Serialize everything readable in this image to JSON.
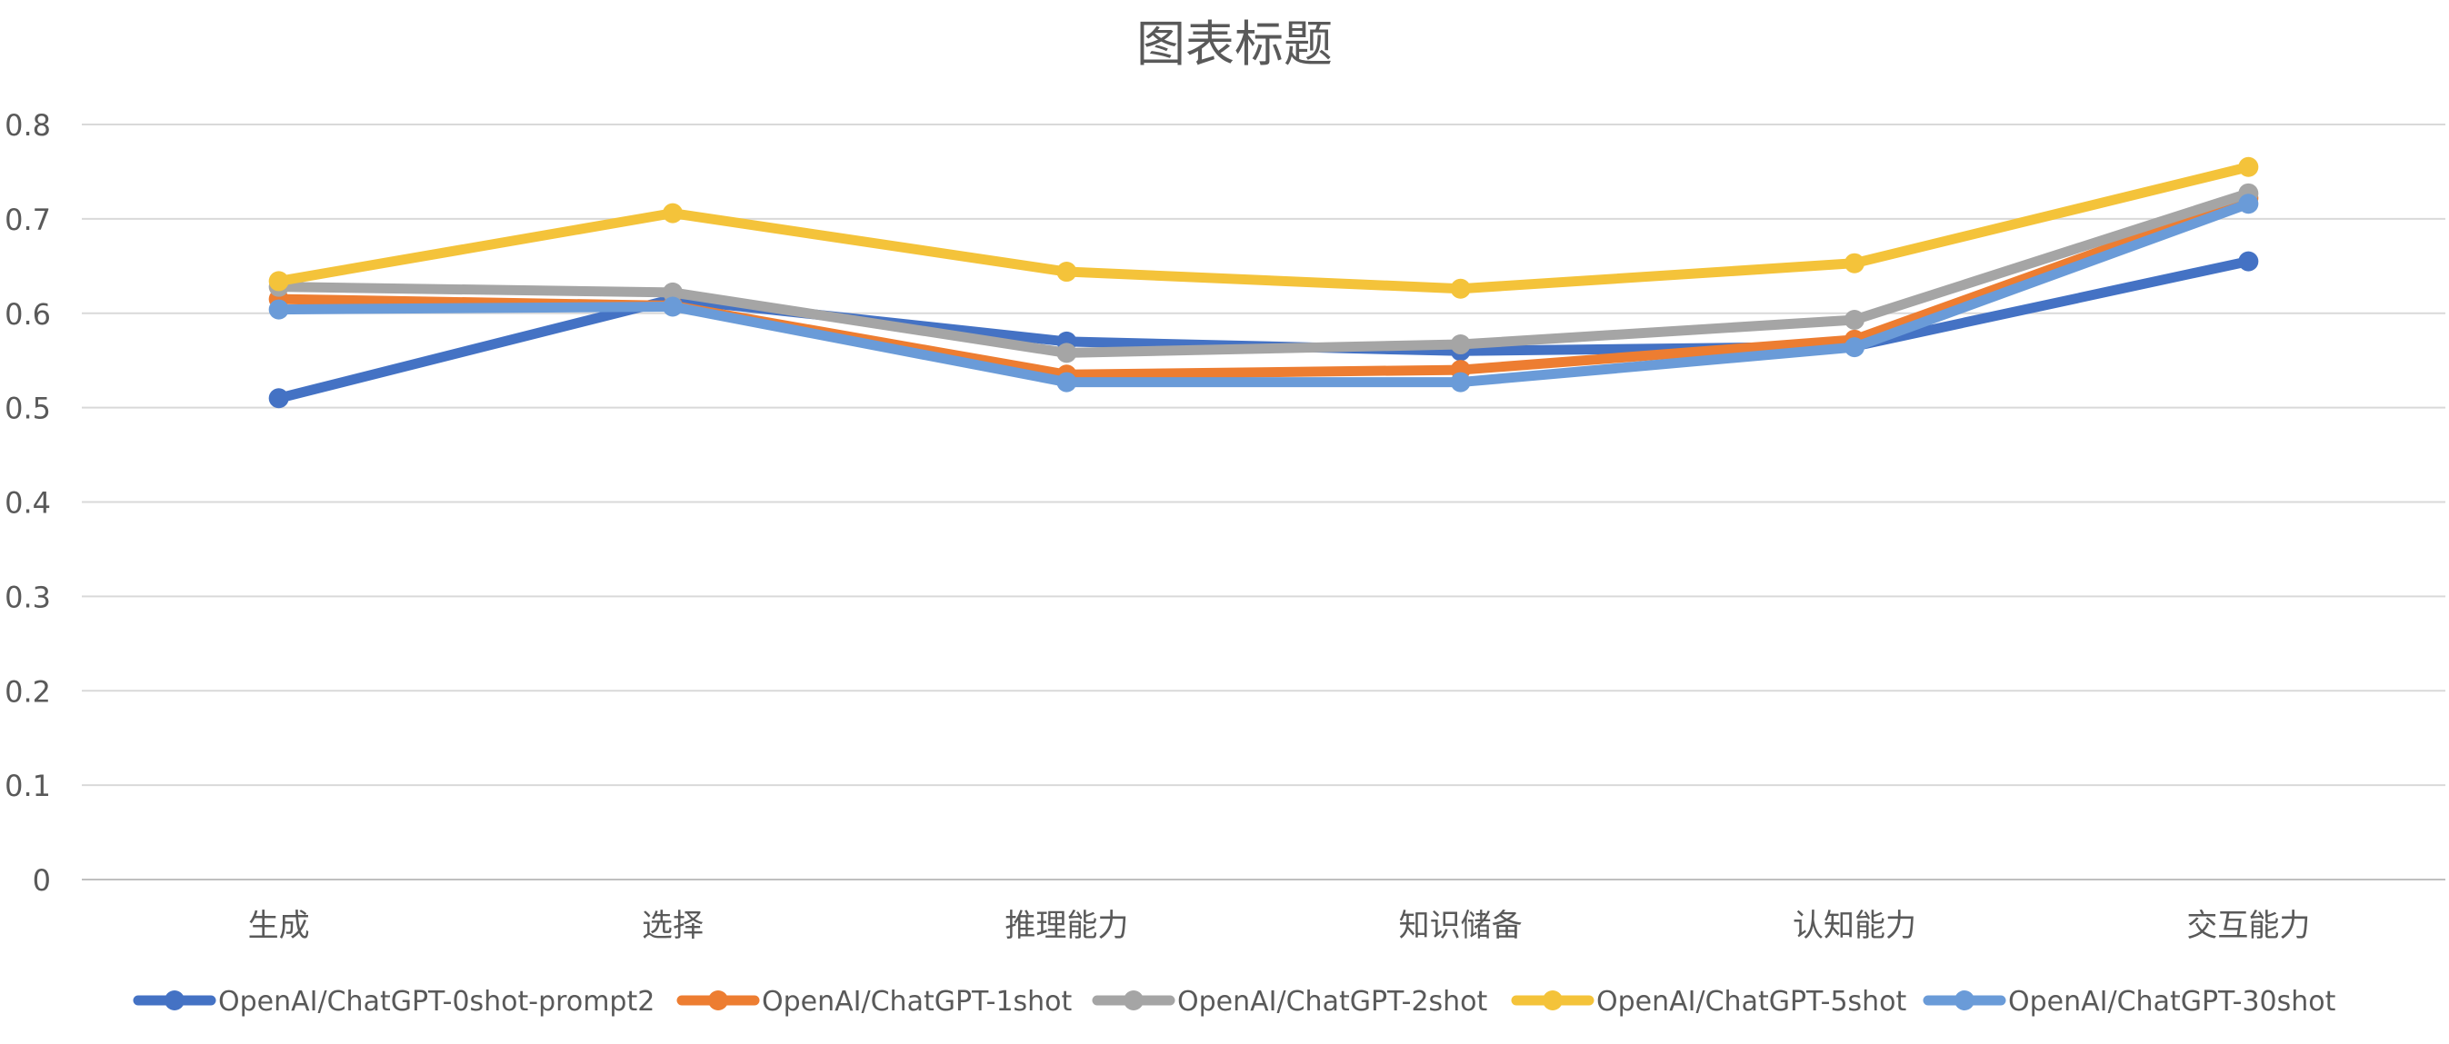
{
  "chart_data": {
    "type": "line",
    "title": "图表标题",
    "xlabel": "",
    "ylabel": "",
    "categories": [
      "生成",
      "选择",
      "推理能力",
      "知识储备",
      "认知能力",
      "交互能力"
    ],
    "ylim": [
      0,
      0.8
    ],
    "yticks": [
      0,
      0.1,
      0.2,
      0.3,
      0.4,
      0.5,
      0.6,
      0.7,
      0.8
    ],
    "ytick_labels": [
      "0",
      "0.1",
      "0.2",
      "0.3",
      "0.4",
      "0.5",
      "0.6",
      "0.7",
      "0.8"
    ],
    "grid": true,
    "legend_position": "bottom",
    "series": [
      {
        "name": "OpenAI/ChatGPT-0shot-prompt2",
        "color": "#4472C4",
        "values": [
          0.51,
          0.615,
          0.57,
          0.56,
          0.565,
          0.655
        ]
      },
      {
        "name": "OpenAI/ChatGPT-1shot",
        "color": "#ED7D31",
        "values": [
          0.615,
          0.608,
          0.535,
          0.54,
          0.572,
          0.722
        ]
      },
      {
        "name": "OpenAI/ChatGPT-2shot",
        "color": "#A5A5A5",
        "values": [
          0.628,
          0.622,
          0.558,
          0.567,
          0.593,
          0.727
        ]
      },
      {
        "name": "OpenAI/ChatGPT-5shot",
        "color": "#F4C33A",
        "values": [
          0.634,
          0.706,
          0.644,
          0.626,
          0.653,
          0.755
        ]
      },
      {
        "name": "OpenAI/ChatGPT-30shot",
        "color": "#6A9BD8",
        "values": [
          0.604,
          0.607,
          0.527,
          0.527,
          0.564,
          0.716
        ]
      }
    ]
  }
}
